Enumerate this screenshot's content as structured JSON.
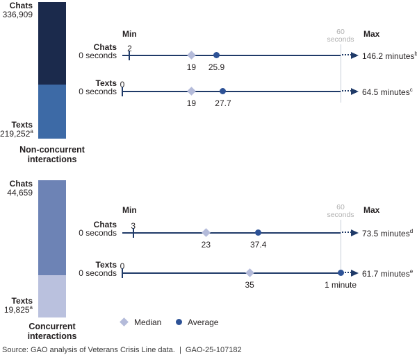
{
  "colors": {
    "text": "#231f20",
    "line": "#1f3a68",
    "dot": "#2d5296",
    "diamond": "#b4bbda",
    "grayline": "#c6cdd8",
    "graytext": "#b0b0b0",
    "navy": "#1b2a4c",
    "steel": "#3d6aa6",
    "slate": "#6d83b5",
    "lavender": "#bac1de"
  },
  "legend": {
    "median_label": "Median",
    "average_label": "Average"
  },
  "source_line": "Source: GAO analysis of Veterans Crisis Line data.  |  GAO-25-107182",
  "chart_data": [
    {
      "type": "scatter",
      "subtype": "dot-range-timeline-with-stacked-bar",
      "axis": {
        "min_header": "Min",
        "max_header": "Max",
        "threshold_label_line1": "60",
        "threshold_label_line2": "seconds",
        "threshold_seconds": 60,
        "x_range_seconds": [
          0,
          60
        ],
        "units": "seconds"
      },
      "bar": {
        "group_label_line1": "Non-concurrent",
        "group_label_line2": "interactions",
        "segments": [
          {
            "label": "Chats",
            "value_label": "336,909",
            "superscript": "",
            "value": 336909,
            "color": "#1b2a4c"
          },
          {
            "label": "Texts",
            "value_label": "219,252",
            "superscript": "a",
            "value": 219252,
            "color": "#3d6aa6"
          }
        ]
      },
      "rows": [
        {
          "label": "Chats",
          "sublabel": "0 seconds",
          "min": 2,
          "min_label": "2",
          "median": 19,
          "median_label": "19",
          "average": 25.9,
          "average_label": "25.9",
          "max_label": "146.2 minutes",
          "max_superscript": "b"
        },
        {
          "label": "Texts",
          "sublabel": "0 seconds",
          "min": 0,
          "min_label": "0",
          "median": 19,
          "median_label": "19",
          "average": 27.7,
          "average_label": "27.7",
          "max_label": "64.5 minutes",
          "max_superscript": "c"
        }
      ]
    },
    {
      "type": "scatter",
      "subtype": "dot-range-timeline-with-stacked-bar",
      "axis": {
        "min_header": "Min",
        "max_header": "Max",
        "threshold_label_line1": "60",
        "threshold_label_line2": "seconds",
        "threshold_seconds": 60,
        "x_range_seconds": [
          0,
          60
        ],
        "units": "seconds"
      },
      "bar": {
        "group_label_line1": "Concurrent",
        "group_label_line2": "interactions",
        "segments": [
          {
            "label": "Chats",
            "value_label": "44,659",
            "superscript": "",
            "value": 44659,
            "color": "#6d83b5"
          },
          {
            "label": "Texts",
            "value_label": "19,825",
            "superscript": "a",
            "value": 19825,
            "color": "#bac1de"
          }
        ]
      },
      "rows": [
        {
          "label": "Chats",
          "sublabel": "0 seconds",
          "min": 3,
          "min_label": "3",
          "median": 23,
          "median_label": "23",
          "average": 37.4,
          "average_label": "37.4",
          "max_label": "73.5 minutes",
          "max_superscript": "d"
        },
        {
          "label": "Texts",
          "sublabel": "0 seconds",
          "min": 0,
          "min_label": "0",
          "median": 35,
          "median_label": "35",
          "average": 60,
          "average_label": "1 minute",
          "max_label": "61.7 minutes",
          "max_superscript": "e"
        }
      ]
    }
  ]
}
